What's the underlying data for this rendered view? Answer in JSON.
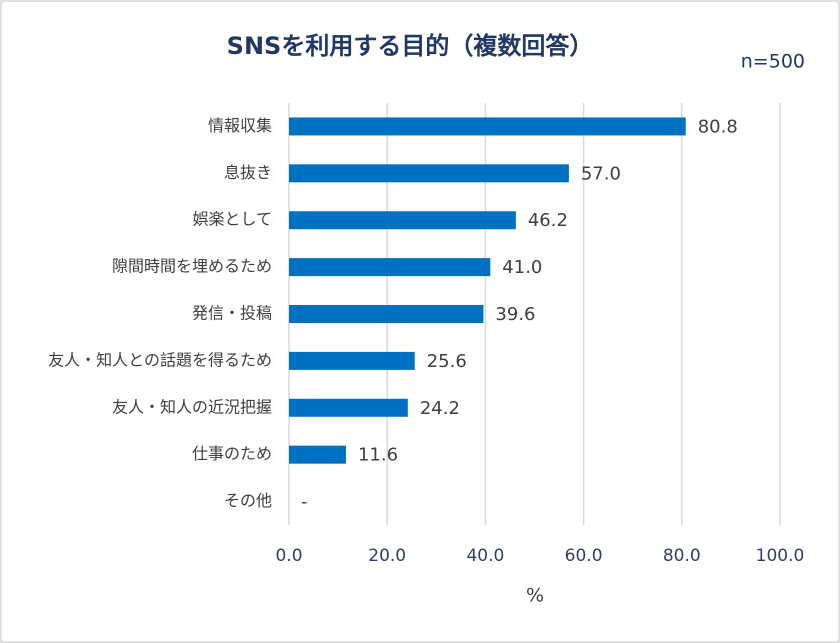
{
  "chart_data": {
    "type": "bar",
    "orientation": "horizontal",
    "title": "SNSを利用する目的（複数回答）",
    "annotation": "n=500",
    "x_label": "%",
    "categories": [
      "情報収集",
      "息抜き",
      "娯楽として",
      "隙間時間を埋めるため",
      "発信・投稿",
      "友人・知人との話題を得るため",
      "友人・知人の近況把握",
      "仕事のため",
      "その他"
    ],
    "values": [
      80.8,
      57.0,
      46.2,
      41.0,
      39.6,
      25.6,
      24.2,
      11.6,
      null
    ],
    "value_labels": [
      "80.8",
      "57.0",
      "46.2",
      "41.0",
      "39.6",
      "25.6",
      "24.2",
      "11.6",
      "-"
    ],
    "color": "#0070c0",
    "xlim": [
      0,
      100
    ],
    "xticks": [
      {
        "value": 0,
        "label": "0.0"
      },
      {
        "value": 20,
        "label": "20.0"
      },
      {
        "value": 40,
        "label": "40.0"
      },
      {
        "value": 60,
        "label": "60.0"
      },
      {
        "value": 80,
        "label": "80.0"
      },
      {
        "value": 100,
        "label": "100.0"
      }
    ],
    "grid": true
  }
}
